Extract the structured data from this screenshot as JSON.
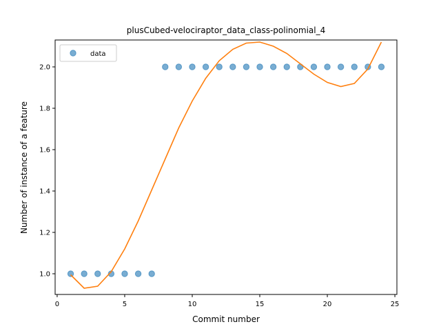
{
  "chart_data": {
    "type": "scatter",
    "title": "plusCubed-velociraptor_data_class-polinomial_4",
    "xlabel": "Commit number",
    "ylabel": "Number of instance of a feature",
    "xlim": [
      -0.15,
      25.15
    ],
    "ylim": [
      0.9,
      2.13
    ],
    "xticks": [
      0,
      5,
      10,
      15,
      20,
      25
    ],
    "yticks": [
      1.0,
      1.2,
      1.4,
      1.6,
      1.8,
      2.0
    ],
    "xtick_labels": [
      "0",
      "5",
      "10",
      "15",
      "20",
      "25"
    ],
    "ytick_labels": [
      "1.0",
      "1.2",
      "1.4",
      "1.6",
      "1.8",
      "2.0"
    ],
    "legend": {
      "position": "top-left",
      "entries": [
        "data"
      ]
    },
    "grid": false,
    "series": [
      {
        "name": "data",
        "kind": "scatter",
        "color": "#1f77b4",
        "x": [
          1,
          2,
          3,
          4,
          5,
          6,
          7,
          8,
          9,
          10,
          11,
          12,
          13,
          14,
          15,
          16,
          17,
          18,
          19,
          20,
          21,
          22,
          23,
          24
        ],
        "y": [
          1,
          1,
          1,
          1,
          1,
          1,
          1,
          2,
          2,
          2,
          2,
          2,
          2,
          2,
          2,
          2,
          2,
          2,
          2,
          2,
          2,
          2,
          2,
          2
        ]
      },
      {
        "kind": "line",
        "color": "#ff7f0e",
        "x": [
          1,
          2,
          3,
          4,
          5,
          6,
          7,
          8,
          9,
          10,
          11,
          12,
          13,
          14,
          15,
          16,
          17,
          18,
          19,
          20,
          21,
          22,
          23,
          24
        ],
        "y": [
          0.995,
          0.93,
          0.94,
          1.01,
          1.12,
          1.255,
          1.405,
          1.555,
          1.705,
          1.835,
          1.945,
          2.03,
          2.085,
          2.115,
          2.12,
          2.1,
          2.065,
          2.015,
          1.965,
          1.925,
          1.905,
          1.92,
          1.99,
          2.12
        ]
      }
    ]
  }
}
